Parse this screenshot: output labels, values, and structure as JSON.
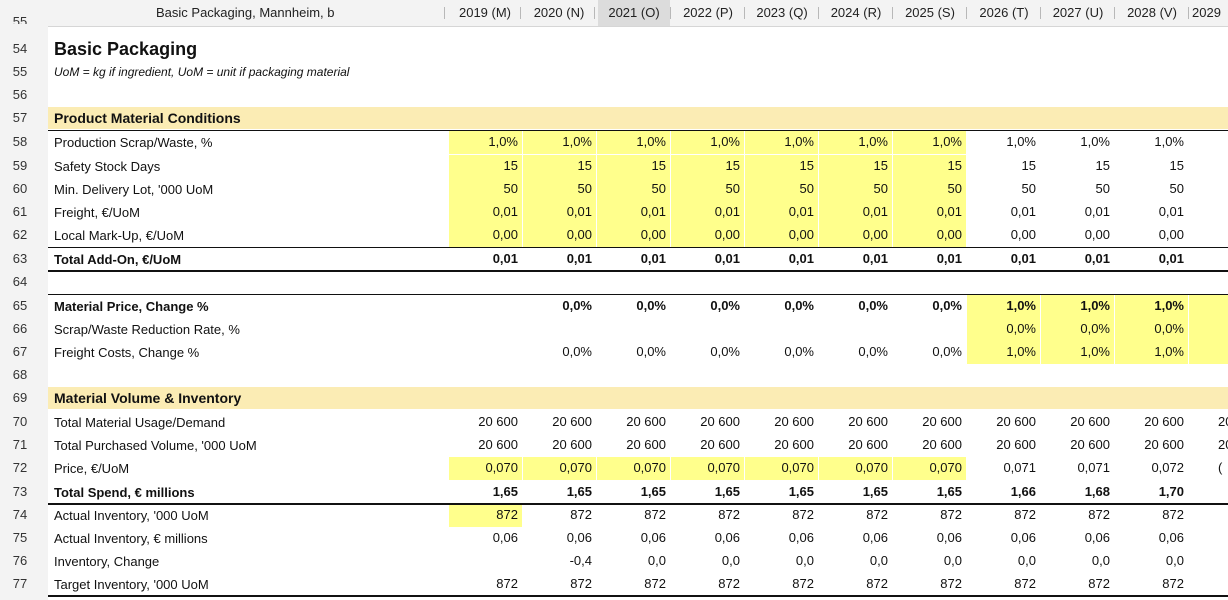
{
  "sheet": {
    "title_cell": "Basic Packaging, Mannheim, b",
    "columns": [
      "2019 (M)",
      "2020 (N)",
      "2021 (O)",
      "2022 (P)",
      "2023 (Q)",
      "2024 (R)",
      "2025 (S)",
      "2026 (T)",
      "2027 (U)",
      "2028 (V)",
      "2029"
    ],
    "selected_column": "2021 (O)"
  },
  "rows": [
    {
      "n": "55",
      "label": ""
    },
    {
      "n": "54",
      "label": "Basic Packaging",
      "type": "title"
    },
    {
      "n": "55",
      "label": "UoM = kg if ingredient, UoM = unit if packaging material",
      "type": "subtitle"
    },
    {
      "n": "56",
      "label": ""
    },
    {
      "n": "57",
      "label": "Product Material Conditions",
      "type": "section"
    },
    {
      "n": "58",
      "label": "Production Scrap/Waste, %",
      "values": [
        "1,0%",
        "1,0%",
        "1,0%",
        "1,0%",
        "1,0%",
        "1,0%",
        "1,0%",
        "1,0%",
        "1,0%",
        "1,0%"
      ]
    },
    {
      "n": "59",
      "label": "Safety Stock Days",
      "values": [
        "15",
        "15",
        "15",
        "15",
        "15",
        "15",
        "15",
        "15",
        "15",
        "15"
      ]
    },
    {
      "n": "60",
      "label": "Min. Delivery Lot, '000 UoM",
      "values": [
        "50",
        "50",
        "50",
        "50",
        "50",
        "50",
        "50",
        "50",
        "50",
        "50"
      ]
    },
    {
      "n": "61",
      "label": "Freight, €/UoM",
      "values": [
        "0,01",
        "0,01",
        "0,01",
        "0,01",
        "0,01",
        "0,01",
        "0,01",
        "0,01",
        "0,01",
        "0,01"
      ]
    },
    {
      "n": "62",
      "label": "Local Mark-Up, €/UoM",
      "values": [
        "0,00",
        "0,00",
        "0,00",
        "0,00",
        "0,00",
        "0,00",
        "0,00",
        "0,00",
        "0,00",
        "0,00"
      ]
    },
    {
      "n": "63",
      "label": "Total Add-On, €/UoM",
      "type": "total",
      "values": [
        "0,01",
        "0,01",
        "0,01",
        "0,01",
        "0,01",
        "0,01",
        "0,01",
        "0,01",
        "0,01",
        "0,01"
      ]
    },
    {
      "n": "64",
      "label": ""
    },
    {
      "n": "65",
      "label": "Material Price, Change %",
      "type": "total",
      "values": [
        "",
        "0,0%",
        "0,0%",
        "0,0%",
        "0,0%",
        "0,0%",
        "0,0%",
        "1,0%",
        "1,0%",
        "1,0%"
      ]
    },
    {
      "n": "66",
      "label": "Scrap/Waste Reduction Rate, %",
      "values": [
        "",
        "",
        "",
        "",
        "",
        "",
        "",
        "0,0%",
        "0,0%",
        "0,0%"
      ]
    },
    {
      "n": "67",
      "label": "Freight Costs, Change %",
      "values": [
        "",
        "0,0%",
        "0,0%",
        "0,0%",
        "0,0%",
        "0,0%",
        "0,0%",
        "1,0%",
        "1,0%",
        "1,0%"
      ]
    },
    {
      "n": "68",
      "label": ""
    },
    {
      "n": "69",
      "label": "Material Volume & Inventory",
      "type": "section"
    },
    {
      "n": "70",
      "label": "Total Material Usage/Demand",
      "values": [
        "20 600",
        "20 600",
        "20 600",
        "20 600",
        "20 600",
        "20 600",
        "20 600",
        "20 600",
        "20 600",
        "20 600"
      ],
      "overflow": "20"
    },
    {
      "n": "71",
      "label": "Total Purchased Volume, '000 UoM",
      "values": [
        "20 600",
        "20 600",
        "20 600",
        "20 600",
        "20 600",
        "20 600",
        "20 600",
        "20 600",
        "20 600",
        "20 600"
      ],
      "overflow": "20"
    },
    {
      "n": "72",
      "label": "Price, €/UoM",
      "values": [
        "0,070",
        "0,070",
        "0,070",
        "0,070",
        "0,070",
        "0,070",
        "0,070",
        "0,071",
        "0,071",
        "0,072"
      ],
      "overflow": "("
    },
    {
      "n": "73",
      "label": "Total Spend, € millions",
      "type": "total",
      "values": [
        "1,65",
        "1,65",
        "1,65",
        "1,65",
        "1,65",
        "1,65",
        "1,65",
        "1,66",
        "1,68",
        "1,70"
      ]
    },
    {
      "n": "74",
      "label": "Actual Inventory, '000 UoM",
      "values": [
        "872",
        "872",
        "872",
        "872",
        "872",
        "872",
        "872",
        "872",
        "872",
        "872"
      ]
    },
    {
      "n": "75",
      "label": "Actual Inventory, € millions",
      "values": [
        "0,06",
        "0,06",
        "0,06",
        "0,06",
        "0,06",
        "0,06",
        "0,06",
        "0,06",
        "0,06",
        "0,06"
      ]
    },
    {
      "n": "76",
      "label": "Inventory, Change",
      "values": [
        "",
        "-0,4",
        "0,0",
        "0,0",
        "0,0",
        "0,0",
        "0,0",
        "0,0",
        "0,0",
        "0,0"
      ]
    },
    {
      "n": "77",
      "label": "Target Inventory, '000 UoM",
      "values": [
        "872",
        "872",
        "872",
        "872",
        "872",
        "872",
        "872",
        "872",
        "872",
        "872"
      ]
    }
  ],
  "colors": {
    "input_highlight": "#ffff8c",
    "section_band": "#fbecb4",
    "header_bg": "#f3f3f3"
  }
}
